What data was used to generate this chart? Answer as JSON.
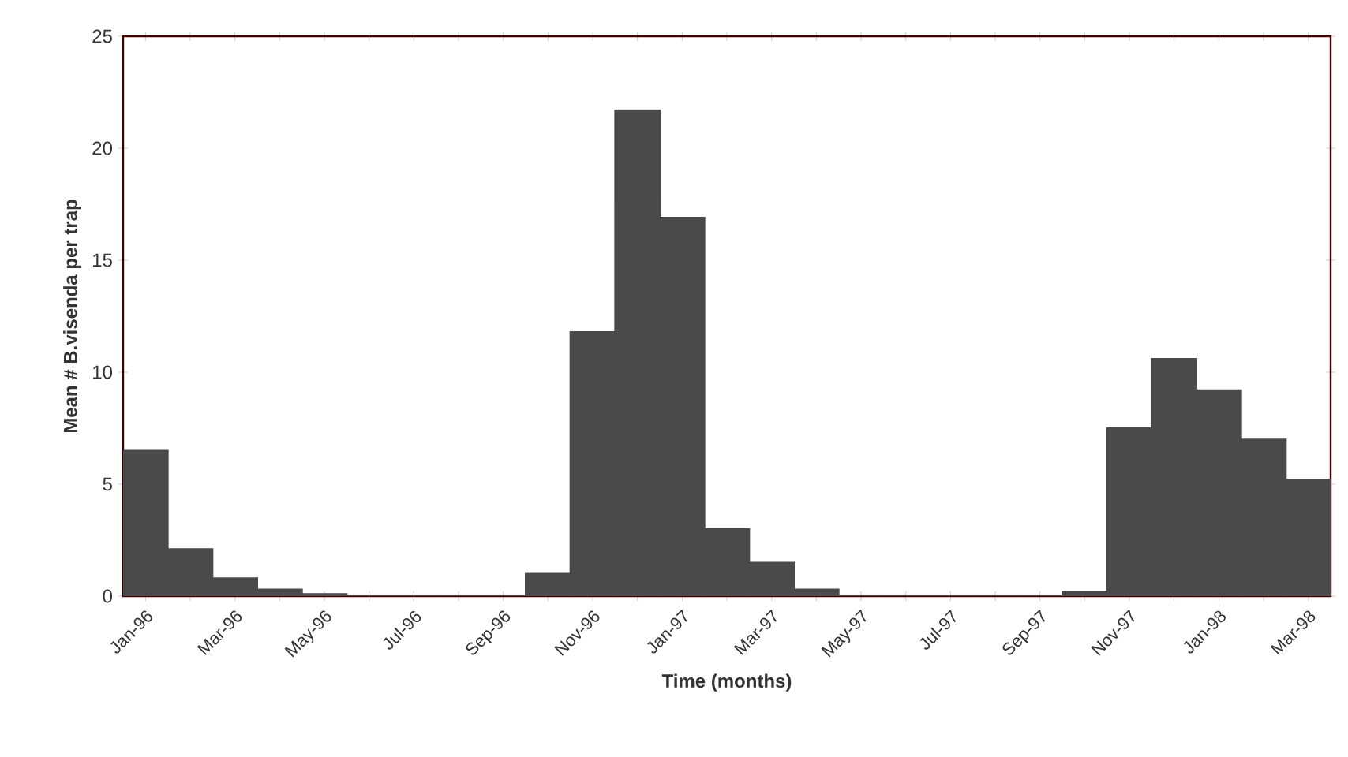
{
  "chart_data": {
    "type": "bar",
    "xlabel": "Time (months)",
    "ylabel": "Mean # B.visenda per trap",
    "categories": [
      "Jan-96",
      null,
      "Mar-96",
      null,
      "May-96",
      null,
      "Jul-96",
      null,
      "Sep-96",
      null,
      "Nov-96",
      null,
      "Jan-97",
      null,
      "Mar-97",
      null,
      "May-97",
      null,
      "Jul-97",
      null,
      "Sep-97",
      null,
      "Nov-97",
      null,
      "Jan-98",
      null,
      "Mar-98"
    ],
    "values": [
      6.5,
      2.1,
      0.8,
      0.3,
      0.1,
      0,
      0,
      0,
      0,
      1.0,
      11.8,
      21.7,
      16.9,
      3.0,
      1.5,
      0.3,
      0,
      0,
      0,
      0,
      0,
      0.2,
      7.5,
      10.6,
      9.2,
      7.0,
      5.2
    ],
    "color": "#4a4a4a",
    "ylim": [
      0,
      25
    ],
    "yticks": [
      0,
      5,
      10,
      15,
      20,
      25
    ],
    "grid": false
  }
}
